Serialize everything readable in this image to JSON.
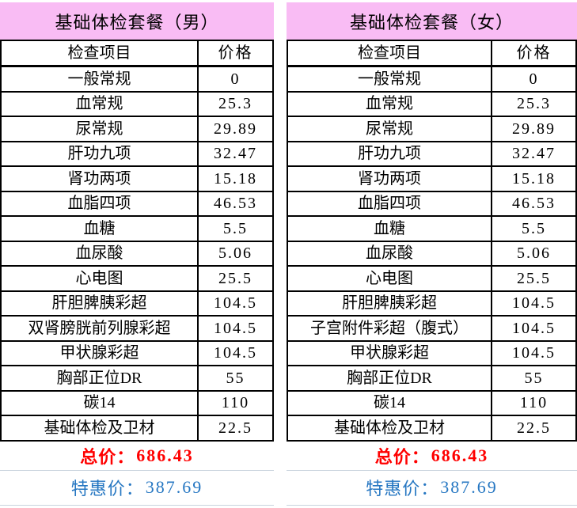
{
  "colors": {
    "header_pink": "#F9BCF4",
    "total_red": "#FF0000",
    "special_blue": "#2677C2",
    "grid_light": "#C9D3DD",
    "table_border": "#000000"
  },
  "packages": [
    {
      "title": "基础体检套餐（男）",
      "col_item": "检查项目",
      "col_price": "价格",
      "rows": [
        [
          "一般常规",
          "0"
        ],
        [
          "血常规",
          "25.3"
        ],
        [
          "尿常规",
          "29.89"
        ],
        [
          "肝功九项",
          "32.47"
        ],
        [
          "肾功两项",
          "15.18"
        ],
        [
          "血脂四项",
          "46.53"
        ],
        [
          "血糖",
          "5.5"
        ],
        [
          "血尿酸",
          "5.06"
        ],
        [
          "心电图",
          "25.5"
        ],
        [
          "肝胆脾胰彩超",
          "104.5"
        ],
        [
          "双肾膀胱前列腺彩超",
          "104.5"
        ],
        [
          "甲状腺彩超",
          "104.5"
        ],
        [
          "胸部正位DR",
          "55"
        ],
        [
          "碳14",
          "110"
        ],
        [
          "基础体检及卫材",
          "22.5"
        ]
      ],
      "total_label": "总价：",
      "total_value": "686.43",
      "special_label": "特惠价：",
      "special_value": "387.69"
    },
    {
      "title": "基础体检套餐（女）",
      "col_item": "检查项目",
      "col_price": "价格",
      "rows": [
        [
          "一般常规",
          "0"
        ],
        [
          "血常规",
          "25.3"
        ],
        [
          "尿常规",
          "29.89"
        ],
        [
          "肝功九项",
          "32.47"
        ],
        [
          "肾功两项",
          "15.18"
        ],
        [
          "血脂四项",
          "46.53"
        ],
        [
          "血糖",
          "5.5"
        ],
        [
          "血尿酸",
          "5.06"
        ],
        [
          "心电图",
          "25.5"
        ],
        [
          "肝胆脾胰彩超",
          "104.5"
        ],
        [
          "子宫附件彩超（腹式）",
          "104.5"
        ],
        [
          "甲状腺彩超",
          "104.5"
        ],
        [
          "胸部正位DR",
          "55"
        ],
        [
          "碳14",
          "110"
        ],
        [
          "基础体检及卫材",
          "22.5"
        ]
      ],
      "total_label": "总价：",
      "total_value": "686.43",
      "special_label": "特惠价：",
      "special_value": "387.69"
    }
  ]
}
